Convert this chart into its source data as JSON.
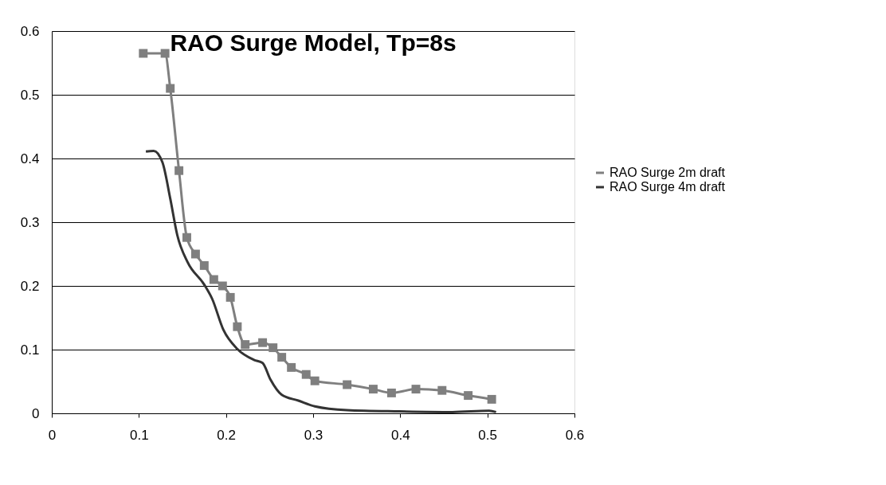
{
  "chart_data": {
    "type": "line",
    "title": "RAO Surge Model, Tp=8s",
    "xlim": [
      0,
      0.6
    ],
    "xticks": [
      0,
      0.1,
      0.2,
      0.3,
      0.4,
      0.5,
      0.6
    ],
    "ylim": [
      0,
      0.6
    ],
    "yticks": [
      0,
      0.1,
      0.2,
      0.3,
      0.4,
      0.5,
      0.6
    ],
    "grid": "y",
    "legend": "right",
    "series": [
      {
        "name": "RAO Surge 2m draft",
        "color": "#7f7f7f",
        "marker": "square",
        "x": [
          0.105,
          0.13,
          0.136,
          0.146,
          0.155,
          0.165,
          0.175,
          0.186,
          0.196,
          0.205,
          0.213,
          0.222,
          0.242,
          0.254,
          0.264,
          0.275,
          0.292,
          0.302,
          0.339,
          0.369,
          0.39,
          0.418,
          0.448,
          0.478,
          0.505
        ],
        "values": [
          0.565,
          0.565,
          0.51,
          0.381,
          0.276,
          0.25,
          0.232,
          0.21,
          0.2,
          0.182,
          0.136,
          0.108,
          0.111,
          0.103,
          0.088,
          0.072,
          0.061,
          0.051,
          0.045,
          0.038,
          0.032,
          0.038,
          0.036,
          0.028,
          0.022
        ]
      },
      {
        "name": "RAO Surge 4m draft",
        "color": "#333333",
        "marker": "none",
        "x": [
          0.108,
          0.117,
          0.127,
          0.136,
          0.144,
          0.156,
          0.175,
          0.184,
          0.197,
          0.213,
          0.232,
          0.242,
          0.251,
          0.264,
          0.283,
          0.302,
          0.339,
          0.399,
          0.46,
          0.502,
          0.51
        ],
        "values": [
          0.411,
          0.412,
          0.394,
          0.337,
          0.28,
          0.237,
          0.202,
          0.18,
          0.131,
          0.101,
          0.084,
          0.079,
          0.053,
          0.029,
          0.02,
          0.011,
          0.005,
          0.003,
          0.002,
          0.004,
          0.002
        ]
      }
    ]
  }
}
